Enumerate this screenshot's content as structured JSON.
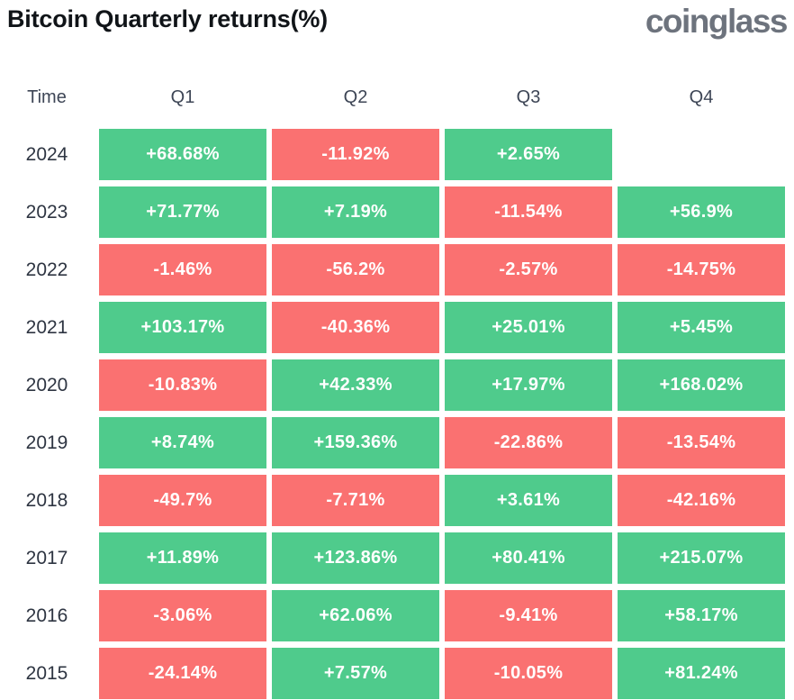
{
  "page": {
    "title": "Bitcoin Quarterly returns(%)",
    "brand": "coinglass"
  },
  "table": {
    "columns": [
      "Time",
      "Q1",
      "Q2",
      "Q3",
      "Q4"
    ],
    "rows": [
      {
        "year": "2024",
        "values": [
          "+68.68%",
          "-11.92%",
          "+2.65%",
          null
        ]
      },
      {
        "year": "2023",
        "values": [
          "+71.77%",
          "+7.19%",
          "-11.54%",
          "+56.9%"
        ]
      },
      {
        "year": "2022",
        "values": [
          "-1.46%",
          "-56.2%",
          "-2.57%",
          "-14.75%"
        ]
      },
      {
        "year": "2021",
        "values": [
          "+103.17%",
          "-40.36%",
          "+25.01%",
          "+5.45%"
        ]
      },
      {
        "year": "2020",
        "values": [
          "-10.83%",
          "+42.33%",
          "+17.97%",
          "+168.02%"
        ]
      },
      {
        "year": "2019",
        "values": [
          "+8.74%",
          "+159.36%",
          "-22.86%",
          "-13.54%"
        ]
      },
      {
        "year": "2018",
        "values": [
          "-49.7%",
          "-7.71%",
          "+3.61%",
          "-42.16%"
        ]
      },
      {
        "year": "2017",
        "values": [
          "+11.89%",
          "+123.86%",
          "+80.41%",
          "+215.07%"
        ]
      },
      {
        "year": "2016",
        "values": [
          "-3.06%",
          "+62.06%",
          "-9.41%",
          "+58.17%"
        ]
      },
      {
        "year": "2015",
        "values": [
          "-24.14%",
          "+7.57%",
          "-10.05%",
          "+81.24%"
        ]
      }
    ]
  },
  "colors": {
    "positive": "#4FCB8C",
    "negative": "#FA7171",
    "title_text": "#101418",
    "brand_text": "#6D737D",
    "header_text": "#3E4656",
    "year_text": "#2E3542"
  },
  "chart_data": {
    "type": "heatmap",
    "title": "Bitcoin Quarterly returns(%)",
    "columns": [
      "Q1",
      "Q2",
      "Q3",
      "Q4"
    ],
    "rows": [
      "2024",
      "2023",
      "2022",
      "2021",
      "2020",
      "2019",
      "2018",
      "2017",
      "2016",
      "2015"
    ],
    "values": [
      [
        68.68,
        -11.92,
        2.65,
        null
      ],
      [
        71.77,
        7.19,
        -11.54,
        56.9
      ],
      [
        -1.46,
        -56.2,
        -2.57,
        -14.75
      ],
      [
        103.17,
        -40.36,
        25.01,
        5.45
      ],
      [
        -10.83,
        42.33,
        17.97,
        168.02
      ],
      [
        8.74,
        159.36,
        -22.86,
        -13.54
      ],
      [
        -49.7,
        -7.71,
        3.61,
        -42.16
      ],
      [
        11.89,
        123.86,
        80.41,
        215.07
      ],
      [
        -3.06,
        62.06,
        -9.41,
        58.17
      ],
      [
        -24.14,
        7.57,
        -10.05,
        81.24
      ]
    ],
    "unit": "%",
    "legend": "green cell = positive quarterly return, red cell = negative quarterly return, blank = no data yet",
    "grid": false
  }
}
